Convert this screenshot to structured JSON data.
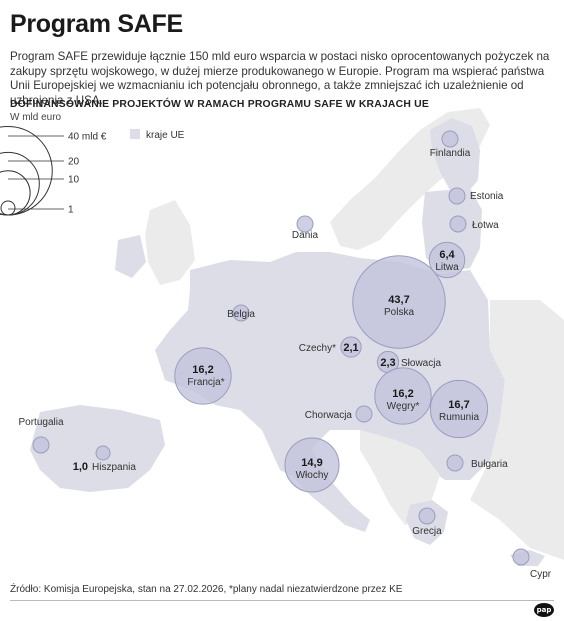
{
  "header": {
    "title": "Program SAFE",
    "intro": "Program SAFE przewiduje łącznie 150 mld euro wsparcia w postaci nisko oprocentowanych pożyczek na zakupy sprzętu wojskowego, w dużej mierze produkowanego w Europie. Program ma wspierać państwa Unii Europejskiej we wzmacnianiu ich potencjału obronnego, a także zmniejszać ich uzależnienie od uzbrojenia z USA."
  },
  "chart": {
    "title": "DOFINANSOWANIE PROJEKTÓW W RAMACH PROGRAMU SAFE W KRAJACH UE",
    "unit": "W mld euro"
  },
  "legend": {
    "sizes": [
      "40 mld €",
      "20",
      "10",
      "1"
    ],
    "size_values": [
      40,
      20,
      10,
      1
    ],
    "eu_label": "kraje UE"
  },
  "countries": [
    {
      "name": "Finlandia",
      "value": null,
      "value_label": ""
    },
    {
      "name": "Estonia",
      "value": null,
      "value_label": ""
    },
    {
      "name": "Łotwa",
      "value": null,
      "value_label": ""
    },
    {
      "name": "Litwa",
      "value": 6.4,
      "value_label": "6,4"
    },
    {
      "name": "Dania",
      "value": null,
      "value_label": ""
    },
    {
      "name": "Polska",
      "value": 43.7,
      "value_label": "43,7"
    },
    {
      "name": "Belgia",
      "value": null,
      "value_label": ""
    },
    {
      "name": "Czechy*",
      "value": 2.1,
      "value_label": "2,1"
    },
    {
      "name": "Słowacja",
      "value": 2.3,
      "value_label": "2,3"
    },
    {
      "name": "Francja*",
      "value": 16.2,
      "value_label": "16,2"
    },
    {
      "name": "Węgry*",
      "value": 16.2,
      "value_label": "16,2"
    },
    {
      "name": "Rumunia",
      "value": 16.7,
      "value_label": "16,7"
    },
    {
      "name": "Portugalia",
      "value": null,
      "value_label": ""
    },
    {
      "name": "Chorwacja",
      "value": null,
      "value_label": ""
    },
    {
      "name": "Hiszpania",
      "value": 1.0,
      "value_label": "1,0"
    },
    {
      "name": "Włochy",
      "value": 14.9,
      "value_label": "14,9"
    },
    {
      "name": "Bułgaria",
      "value": null,
      "value_label": ""
    },
    {
      "name": "Grecja",
      "value": null,
      "value_label": ""
    },
    {
      "name": "Cypr",
      "value": null,
      "value_label": ""
    }
  ],
  "colors": {
    "land_eu": "#dcdde6",
    "land_other": "#ebebeb",
    "bubble_fill": "#c3c5dc",
    "bubble_stroke": "#9a9dbf",
    "sea": "#ffffff"
  },
  "footer": {
    "source": "Źródło: Komisja Europejska, stan na 27.02.2026, *plany nadal niezatwierdzone przez KE",
    "logo": "pap"
  }
}
